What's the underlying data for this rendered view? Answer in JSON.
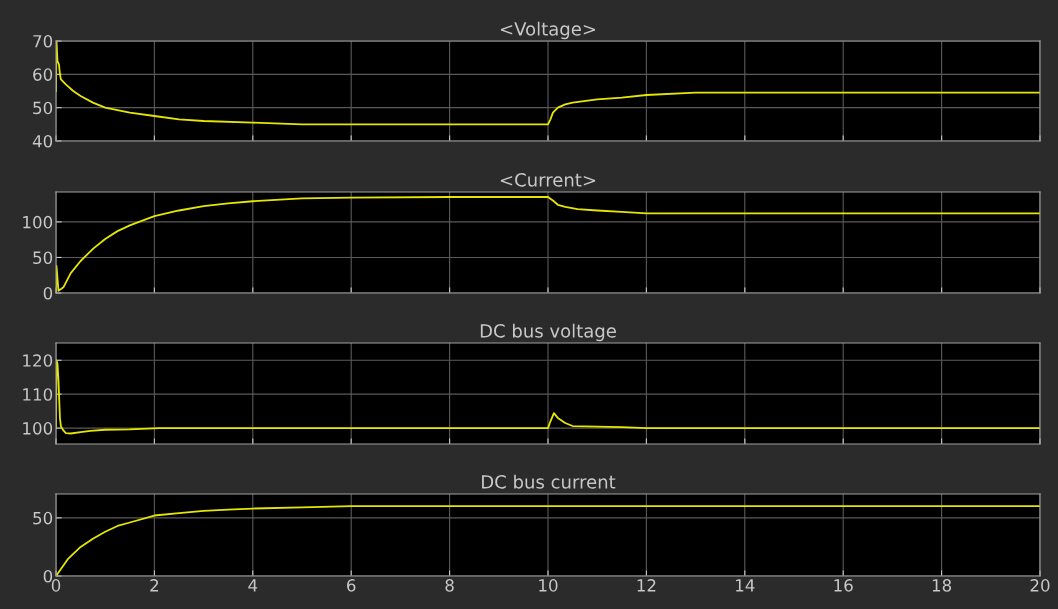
{
  "chart_data": [
    {
      "type": "line",
      "title": "<Voltage>",
      "xlim": [
        0,
        20
      ],
      "xticks": [
        0,
        2,
        4,
        6,
        8,
        10,
        12,
        14,
        16,
        18,
        20
      ],
      "ylim": [
        40,
        70
      ],
      "yticks": [
        40,
        50,
        60,
        70
      ],
      "grid": true,
      "tick_labels": "y",
      "series": [
        {
          "color": "#e6e600",
          "x": [
            0,
            0.01,
            0.03,
            0.06,
            0.08,
            0.1,
            0.2,
            0.35,
            0.5,
            0.75,
            1,
            1.5,
            2,
            2.5,
            3,
            4,
            5,
            6,
            8,
            10,
            10.05,
            10.1,
            10.2,
            10.35,
            10.5,
            11,
            11.5,
            12,
            13,
            15,
            20
          ],
          "values": [
            55,
            70,
            64,
            63,
            60,
            58.5,
            57,
            55,
            53.5,
            51.5,
            50,
            48.5,
            47.5,
            46.5,
            46,
            45.5,
            45,
            45,
            45,
            45,
            46.5,
            48.5,
            50,
            51,
            51.5,
            52.5,
            53,
            53.8,
            54.5,
            54.5,
            54.5
          ]
        }
      ]
    },
    {
      "type": "line",
      "title": "<Current>",
      "xlim": [
        0,
        20
      ],
      "xticks": [
        0,
        2,
        4,
        6,
        8,
        10,
        12,
        14,
        16,
        18,
        20
      ],
      "ylim": [
        0,
        142
      ],
      "yticks": [
        0,
        50,
        100
      ],
      "grid": true,
      "tick_labels": "y",
      "series": [
        {
          "color": "#e6e600",
          "x": [
            0,
            0.01,
            0.05,
            0.15,
            0.3,
            0.5,
            0.75,
            1,
            1.25,
            1.5,
            2,
            2.5,
            3,
            3.5,
            4,
            5,
            6,
            8,
            10,
            10.1,
            10.2,
            10.35,
            10.6,
            11,
            11.5,
            12,
            14,
            20
          ],
          "values": [
            0,
            38,
            3,
            8,
            28,
            45,
            62,
            76,
            87,
            95,
            108,
            116,
            122,
            126,
            129,
            133,
            134,
            135,
            135,
            130,
            124,
            121,
            118,
            116,
            114,
            112,
            112,
            112
          ]
        }
      ]
    },
    {
      "type": "line",
      "title": "DC bus voltage",
      "xlim": [
        0,
        20
      ],
      "xticks": [
        0,
        2,
        4,
        6,
        8,
        10,
        12,
        14,
        16,
        18,
        20
      ],
      "ylim": [
        95.3,
        125.1
      ],
      "yticks": [
        100,
        110,
        120
      ],
      "grid": true,
      "tick_labels": "y",
      "series": [
        {
          "color": "#e6e600",
          "x": [
            0,
            0.01,
            0.03,
            0.05,
            0.08,
            0.1,
            0.15,
            0.2,
            0.3,
            0.5,
            0.7,
            1,
            1.5,
            2.1,
            4,
            6,
            8,
            10,
            10.05,
            10.12,
            10.2,
            10.35,
            10.5,
            11,
            11.5,
            12,
            15,
            20
          ],
          "values": [
            100,
            120,
            119,
            114,
            103,
            100.5,
            99.3,
            98.5,
            98.4,
            98.8,
            99.2,
            99.5,
            99.6,
            100,
            100,
            100,
            100,
            100,
            102,
            104.4,
            103,
            101.5,
            100.6,
            100.4,
            100.3,
            100,
            100,
            100
          ]
        }
      ]
    },
    {
      "type": "line",
      "title": "DC bus current",
      "xlim": [
        0,
        20
      ],
      "xticks": [
        0,
        2,
        4,
        6,
        8,
        10,
        12,
        14,
        16,
        18,
        20
      ],
      "ylim": [
        0,
        70.5
      ],
      "yticks": [
        0,
        50
      ],
      "grid": true,
      "series": [
        {
          "color": "#e6e600",
          "x": [
            0,
            0.1,
            0.25,
            0.5,
            0.75,
            1,
            1.25,
            1.5,
            2,
            2.5,
            3,
            3.5,
            4,
            5,
            6,
            8,
            10,
            12,
            15,
            20
          ],
          "values": [
            0,
            6,
            15,
            25,
            32,
            38,
            43,
            46,
            52,
            54,
            56,
            57,
            58,
            59,
            60,
            60,
            60,
            60,
            60,
            60
          ]
        }
      ]
    }
  ]
}
